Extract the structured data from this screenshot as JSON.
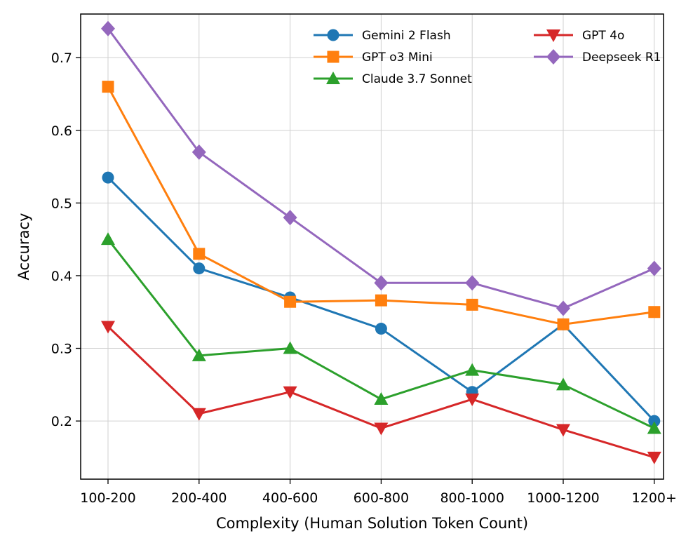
{
  "chart_data": {
    "type": "line",
    "title": "",
    "xlabel": "Complexity (Human Solution Token Count)",
    "ylabel": "Accuracy",
    "categories": [
      "100-200",
      "200-400",
      "400-600",
      "600-800",
      "800-1000",
      "1000-1200",
      "1200+"
    ],
    "ylim": [
      0.12,
      0.76
    ],
    "yticks": [
      0.2,
      0.3,
      0.4,
      0.5,
      0.6,
      0.7
    ],
    "ytick_labels": [
      "0.2",
      "0.3",
      "0.4",
      "0.5",
      "0.6",
      "0.7"
    ],
    "grid": true,
    "legend_position": "top-right",
    "series": [
      {
        "name": "Gemini 2 Flash",
        "color": "#1f77b4",
        "marker": "circle",
        "values": [
          0.535,
          0.41,
          0.37,
          0.327,
          0.24,
          0.333,
          0.2
        ]
      },
      {
        "name": "GPT o3 Mini",
        "color": "#ff7f0e",
        "marker": "square",
        "values": [
          0.66,
          0.43,
          0.364,
          0.366,
          0.36,
          0.333,
          0.35
        ]
      },
      {
        "name": "Claude 3.7 Sonnet",
        "color": "#2ca02c",
        "marker": "triangle-up",
        "values": [
          0.45,
          0.29,
          0.3,
          0.23,
          0.27,
          0.25,
          0.19
        ]
      },
      {
        "name": "GPT 4o",
        "color": "#d62728",
        "marker": "triangle-down",
        "values": [
          0.33,
          0.21,
          0.24,
          0.19,
          0.23,
          0.188,
          0.15
        ]
      },
      {
        "name": "Deepseek R1",
        "color": "#9467bd",
        "marker": "diamond",
        "values": [
          0.74,
          0.57,
          0.48,
          0.39,
          0.39,
          0.355,
          0.41
        ]
      }
    ]
  }
}
